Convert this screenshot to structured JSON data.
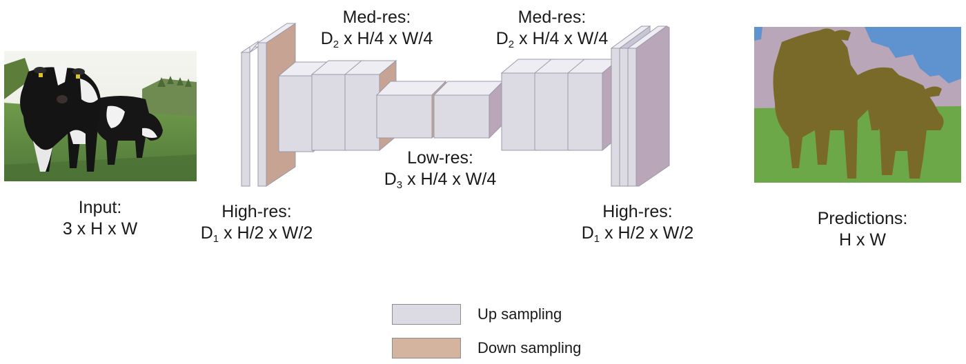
{
  "images": {
    "input_photo": "cow-photo",
    "prediction_map": "cow-segmentation-map"
  },
  "labels": {
    "input": {
      "line1": "Input:",
      "line2": "3 x H x W"
    },
    "high_res_left": {
      "line1": "High-res:",
      "dim_prefix": "D",
      "dim_sub": "1",
      "dim_rest": " x H/2 x W/2"
    },
    "med_res_left": {
      "line1": "Med-res:",
      "dim_prefix": "D",
      "dim_sub": "2",
      "dim_rest": " x H/4 x W/4"
    },
    "low_res": {
      "line1": "Low-res:",
      "dim_prefix": "D",
      "dim_sub": "3",
      "dim_rest": " x H/4 x W/4"
    },
    "med_res_right": {
      "line1": "Med-res:",
      "dim_prefix": "D",
      "dim_sub": "2",
      "dim_rest": " x H/4 x W/4"
    },
    "high_res_right": {
      "line1": "High-res:",
      "dim_prefix": "D",
      "dim_sub": "1",
      "dim_rest": " x H/2 x W/2"
    },
    "predictions": {
      "line1": "Predictions:",
      "line2": "H x W"
    }
  },
  "legend": [
    {
      "label": "Up sampling",
      "color": "#dcdbe3"
    },
    {
      "label": "Down sampling",
      "color": "#d4b49e"
    }
  ],
  "colors": {
    "face_front": "#dcdbe3",
    "face_side": "#c6a392",
    "face_side_right": "#b9a7b9",
    "face_top": "#eeedf3",
    "edge": "#9a9aa8",
    "seg_sky_pink": "#b9a6b8",
    "seg_sky_blue": "#5e93cf",
    "seg_grass": "#6ca848",
    "seg_cow": "#7a6a2a"
  }
}
